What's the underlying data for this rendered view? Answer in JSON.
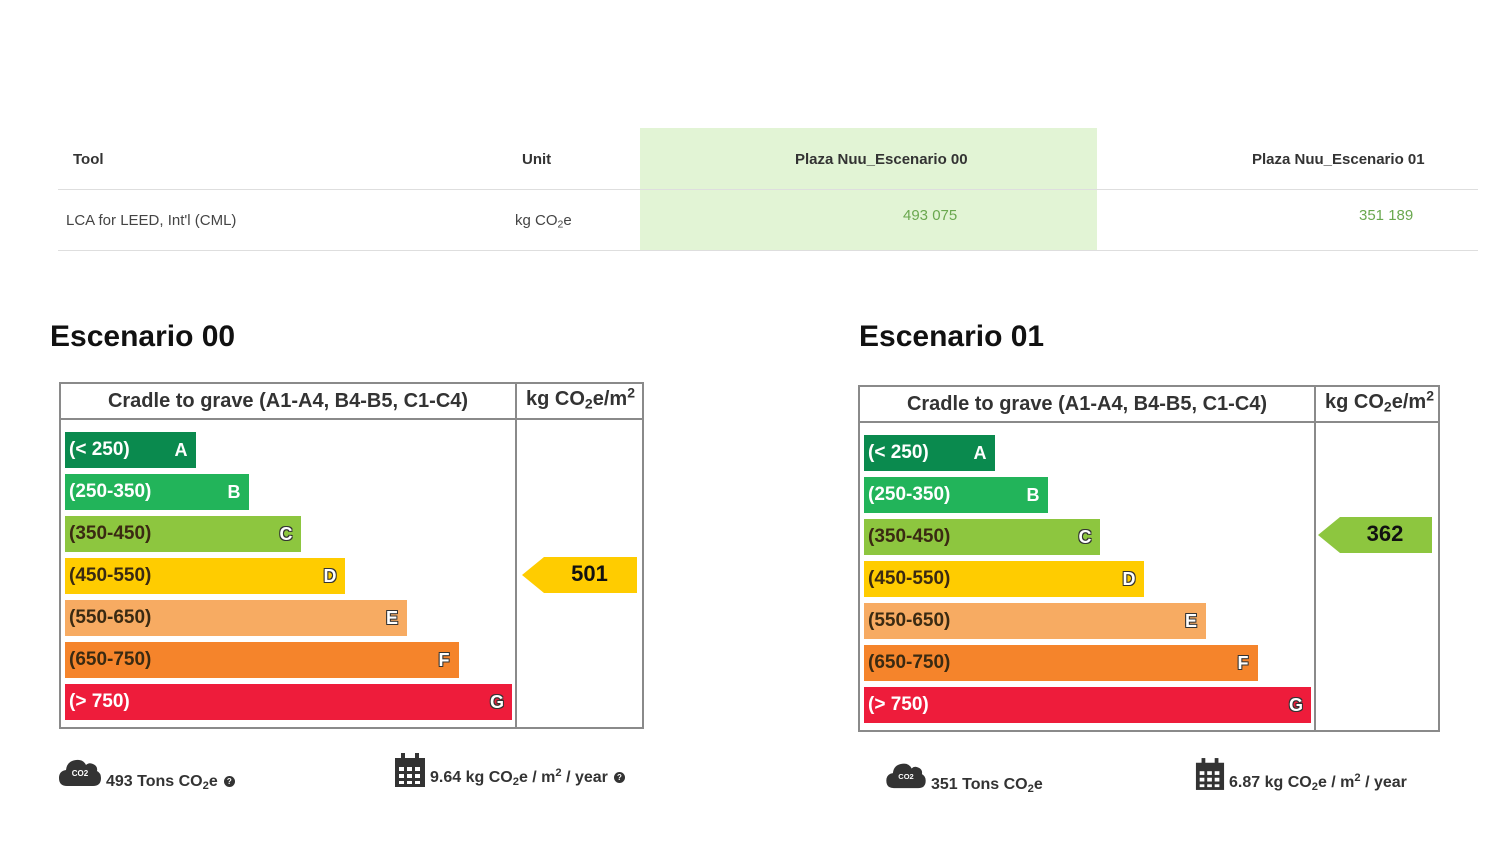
{
  "table": {
    "headers": [
      "Tool",
      "Unit",
      "Plaza Nuu_Escenario 00",
      "Plaza Nuu_Escenario 01"
    ],
    "row": {
      "tool": "LCA for LEED, Int'l (CML)",
      "unit_main": "kg CO",
      "unit_sub": "2",
      "unit_tail": "e",
      "value_00": "493 075",
      "value_01": "351 189"
    },
    "highlight_color": "#e2f4d5",
    "value_color": "#6aa84f"
  },
  "scenarios": [
    {
      "title": "Escenario 00",
      "header_left": "Cradle to grave (A1-A4, B4-B5, C1-C4)",
      "header_right": {
        "main": "kg CO",
        "sub": "2",
        "mid": "e/m",
        "sup": "2"
      },
      "pointer": {
        "value": "501",
        "band": "D",
        "color": "#ffcc00"
      },
      "stats": {
        "total": {
          "value": "493 Tons CO",
          "sub": "2",
          "tail": "e",
          "icon": "co2-cloud-icon"
        },
        "yearly": {
          "value": "9.64 kg CO",
          "sub": "2",
          "mid": "e / m",
          "sup": "2",
          "tail": " / year",
          "icon": "calendar-icon"
        }
      }
    },
    {
      "title": "Escenario 01",
      "header_left": "Cradle to grave (A1-A4, B4-B5, C1-C4)",
      "header_right": {
        "main": "kg CO",
        "sub": "2",
        "mid": "e/m",
        "sup": "2"
      },
      "pointer": {
        "value": "362",
        "band": "C",
        "color": "#8dc63f"
      },
      "stats": {
        "total": {
          "value": "351 Tons CO",
          "sub": "2",
          "tail": "e",
          "icon": "co2-cloud-icon"
        },
        "yearly": {
          "value": "6.87 kg CO",
          "sub": "2",
          "mid": "e / m",
          "sup": "2",
          "tail": " / year",
          "icon": "calendar-icon"
        }
      }
    }
  ],
  "bands": [
    {
      "range": "(< 250)",
      "letter": "A",
      "color": "#0a8a4e"
    },
    {
      "range": "(250-350)",
      "letter": "B",
      "color": "#22b45a"
    },
    {
      "range": "(350-450)",
      "letter": "C",
      "color": "#8dc63f"
    },
    {
      "range": "(450-550)",
      "letter": "D",
      "color": "#ffcc00"
    },
    {
      "range": "(550-650)",
      "letter": "E",
      "color": "#f7ab62"
    },
    {
      "range": "(650-750)",
      "letter": "F",
      "color": "#f5842b"
    },
    {
      "range": "(> 750)",
      "letter": "G",
      "color": "#ee1c3b"
    }
  ]
}
